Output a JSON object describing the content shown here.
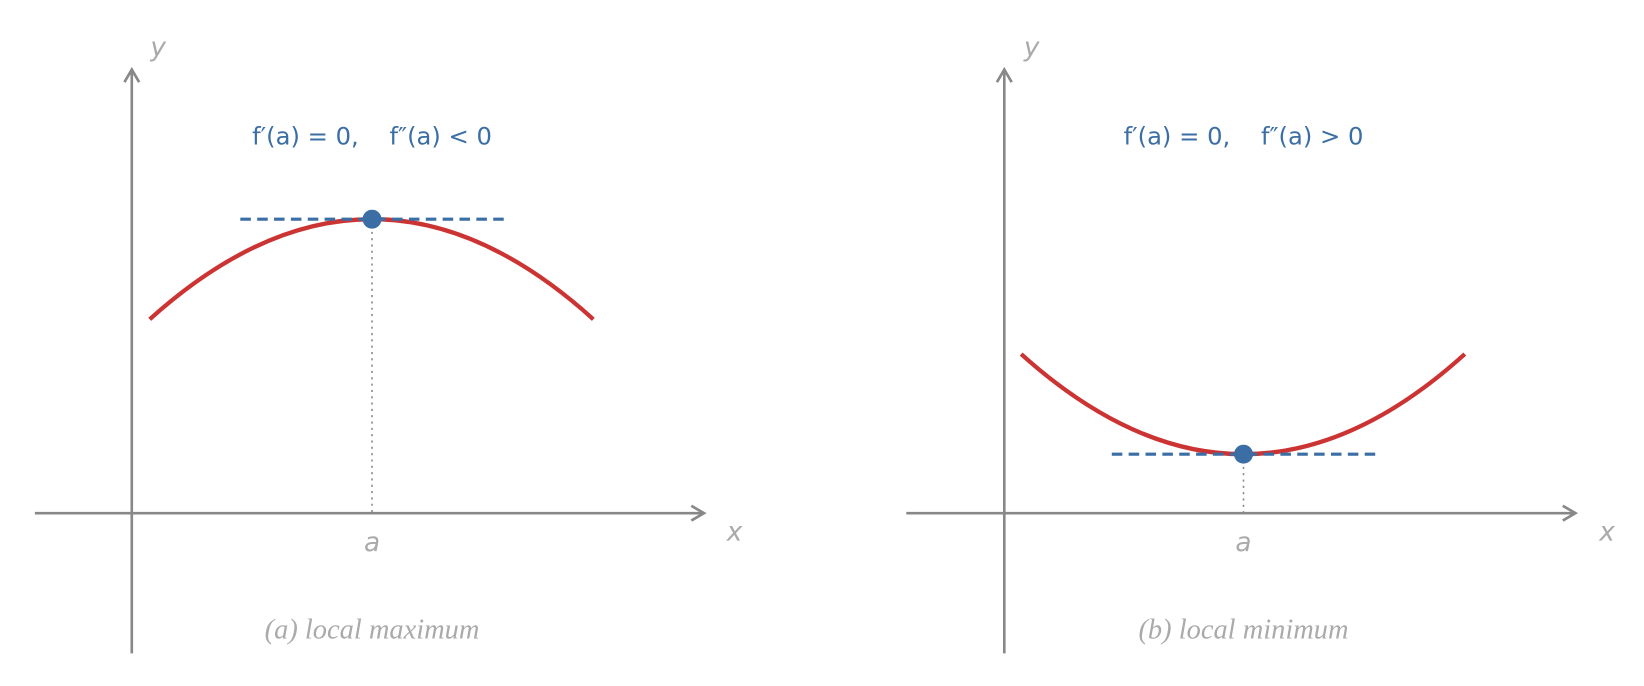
{
  "panels": [
    {
      "formula": "f′(a) = 0,    f″(a) < 0",
      "y_label": "y",
      "x_label": "x",
      "point_label": "a",
      "caption": "(a) local maximum"
    },
    {
      "formula": "f′(a) = 0,    f″(a) > 0",
      "y_label": "y",
      "x_label": "x",
      "point_label": "a",
      "caption": "(b) local minimum"
    }
  ]
}
